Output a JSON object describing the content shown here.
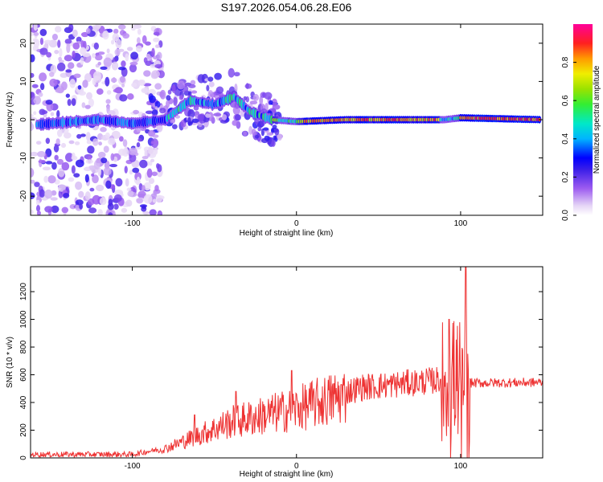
{
  "title": "S197.2026.054.06.28.E06",
  "chart_data": [
    {
      "type": "heatmap",
      "xlabel": "Height of straight line (km)",
      "ylabel": "Frequency (Hz)",
      "xlim": [
        -162,
        150
      ],
      "ylim": [
        -25,
        25
      ],
      "xticks": [
        -100,
        0,
        100
      ],
      "yticks": [
        -20,
        -10,
        0,
        10,
        20
      ],
      "colorbar": {
        "label": "Normalized spectral amplitude",
        "range": [
          0,
          1
        ],
        "ticks": [
          0.0,
          0.2,
          0.4,
          0.6,
          0.8
        ]
      },
      "ridge_frequency_hz": [
        {
          "x": -150,
          "f": -1
        },
        {
          "x": -120,
          "f": 0
        },
        {
          "x": -100,
          "f": -1
        },
        {
          "x": -80,
          "f": 0
        },
        {
          "x": -65,
          "f": 5
        },
        {
          "x": -50,
          "f": 4
        },
        {
          "x": -38,
          "f": 6
        },
        {
          "x": -28,
          "f": 2
        },
        {
          "x": -15,
          "f": 0
        },
        {
          "x": 0,
          "f": -0.5
        },
        {
          "x": 30,
          "f": 0
        },
        {
          "x": 90,
          "f": 0
        },
        {
          "x": 100,
          "f": 0.5
        },
        {
          "x": 150,
          "f": 0
        }
      ]
    },
    {
      "type": "line",
      "xlabel": "Height of straight line (km)",
      "ylabel": "SNR (10 * v/v)",
      "xlim": [
        -162,
        150
      ],
      "ylim": [
        0,
        1380
      ],
      "xticks": [
        -100,
        0,
        100
      ],
      "yticks": [
        0,
        200,
        400,
        600,
        800,
        1000,
        1200
      ],
      "series": [
        {
          "name": "SNR",
          "color": "#ee3333",
          "envelope": [
            {
              "x": -162,
              "y": 25
            },
            {
              "x": -100,
              "y": 25
            },
            {
              "x": -80,
              "y": 70
            },
            {
              "x": -60,
              "y": 170
            },
            {
              "x": -40,
              "y": 270
            },
            {
              "x": -20,
              "y": 320
            },
            {
              "x": 0,
              "y": 370
            },
            {
              "x": 20,
              "y": 440
            },
            {
              "x": 40,
              "y": 510
            },
            {
              "x": 60,
              "y": 530
            },
            {
              "x": 85,
              "y": 560
            },
            {
              "x": 95,
              "y": 580
            },
            {
              "x": 105,
              "y": 540
            },
            {
              "x": 150,
              "y": 545
            }
          ],
          "peaks": [
            {
              "x": -62,
              "y": 310
            },
            {
              "x": -37,
              "y": 480
            },
            {
              "x": -3,
              "y": 630
            },
            {
              "x": 93,
              "y": 1000
            },
            {
              "x": 103,
              "y": 1400
            }
          ]
        }
      ]
    }
  ]
}
